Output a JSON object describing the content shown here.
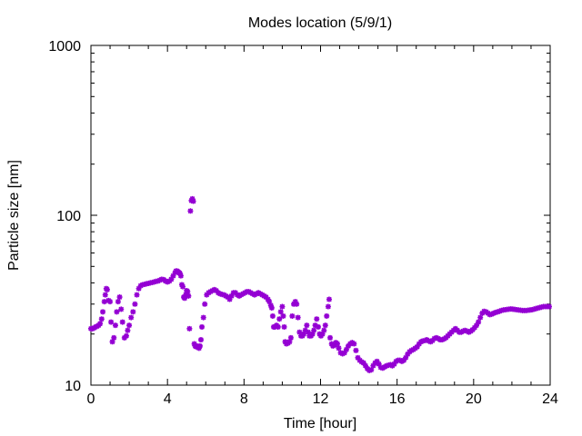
{
  "chart_data": {
    "type": "scatter",
    "title": "Modes location (5/9/1)",
    "xlabel": "Time [hour]",
    "ylabel": "Particle size [nm]",
    "xlim": [
      0,
      24
    ],
    "ylim": [
      10,
      1000
    ],
    "yscale": "log",
    "xticks": [
      0,
      4,
      8,
      12,
      16,
      20,
      24
    ],
    "xtick_labels": [
      "0",
      "4",
      "8",
      "12",
      "16",
      "20",
      "24"
    ],
    "yticks": [
      10,
      100,
      1000
    ],
    "ytick_labels": [
      "10",
      "100",
      "1000"
    ],
    "grid": false,
    "marker_color": "#9400d3",
    "series": [
      {
        "marker": "star",
        "points": [
          [
            0.0,
            21.5
          ],
          [
            0.08,
            21.5
          ],
          [
            0.16,
            21.7
          ],
          [
            0.24,
            22
          ],
          [
            0.32,
            22.2
          ],
          [
            0.4,
            22.5
          ],
          [
            0.48,
            23
          ],
          [
            0.56,
            24.5
          ],
          [
            0.62,
            27
          ],
          [
            0.7,
            31
          ],
          [
            0.75,
            34
          ],
          [
            0.8,
            37
          ],
          [
            0.85,
            36.5
          ],
          [
            0.92,
            31.5
          ],
          [
            1.0,
            31
          ],
          [
            1.05,
            23.5
          ],
          [
            1.12,
            18
          ],
          [
            1.2,
            19
          ],
          [
            1.28,
            22.5
          ],
          [
            1.35,
            27
          ],
          [
            1.42,
            31
          ],
          [
            1.5,
            33
          ],
          [
            1.58,
            28
          ],
          [
            1.65,
            23.5
          ],
          [
            1.75,
            19
          ],
          [
            1.85,
            19.5
          ],
          [
            1.92,
            21
          ],
          [
            2.0,
            22.5
          ],
          [
            2.1,
            25
          ],
          [
            2.2,
            27
          ],
          [
            2.3,
            30
          ],
          [
            2.4,
            34
          ],
          [
            2.5,
            37
          ],
          [
            2.6,
            38.5
          ],
          [
            2.7,
            39
          ],
          [
            2.8,
            39.2
          ],
          [
            2.9,
            39.5
          ],
          [
            3.0,
            39.7
          ],
          [
            3.1,
            40
          ],
          [
            3.2,
            40.2
          ],
          [
            3.3,
            40.5
          ],
          [
            3.4,
            40.8
          ],
          [
            3.5,
            41
          ],
          [
            3.6,
            41.5
          ],
          [
            3.7,
            42
          ],
          [
            3.8,
            41.8
          ],
          [
            3.9,
            41
          ],
          [
            4.0,
            40.5
          ],
          [
            4.1,
            41
          ],
          [
            4.2,
            42
          ],
          [
            4.3,
            44
          ],
          [
            4.4,
            46
          ],
          [
            4.45,
            47
          ],
          [
            4.5,
            47
          ],
          [
            4.55,
            46.5
          ],
          [
            4.6,
            46
          ],
          [
            4.65,
            45.5
          ],
          [
            4.7,
            44
          ],
          [
            4.75,
            39
          ],
          [
            4.8,
            38
          ],
          [
            4.85,
            33
          ],
          [
            4.9,
            32.5
          ],
          [
            4.95,
            34
          ],
          [
            5.0,
            36
          ],
          [
            5.05,
            35.5
          ],
          [
            5.1,
            33.5
          ],
          [
            5.15,
            21.5
          ],
          [
            5.2,
            106
          ],
          [
            5.25,
            122
          ],
          [
            5.3,
            125
          ],
          [
            5.35,
            121
          ],
          [
            5.4,
            17.5
          ],
          [
            5.45,
            17
          ],
          [
            5.5,
            16.8
          ],
          [
            5.55,
            17
          ],
          [
            5.6,
            16.8
          ],
          [
            5.65,
            16.5
          ],
          [
            5.7,
            17
          ],
          [
            5.75,
            18.5
          ],
          [
            5.8,
            22
          ],
          [
            5.88,
            25
          ],
          [
            5.95,
            30
          ],
          [
            6.05,
            34
          ],
          [
            6.15,
            35
          ],
          [
            6.25,
            35.5
          ],
          [
            6.35,
            36
          ],
          [
            6.45,
            36.5
          ],
          [
            6.55,
            36
          ],
          [
            6.65,
            35
          ],
          [
            6.75,
            34.5
          ],
          [
            6.85,
            34.2
          ],
          [
            6.95,
            34
          ],
          [
            7.05,
            33.5
          ],
          [
            7.15,
            33
          ],
          [
            7.25,
            32
          ],
          [
            7.35,
            33.5
          ],
          [
            7.45,
            35
          ],
          [
            7.55,
            35
          ],
          [
            7.65,
            34
          ],
          [
            7.75,
            33.5
          ],
          [
            7.85,
            34
          ],
          [
            7.95,
            34.5
          ],
          [
            8.05,
            35
          ],
          [
            8.15,
            35.5
          ],
          [
            8.25,
            35.5
          ],
          [
            8.35,
            35
          ],
          [
            8.45,
            34.5
          ],
          [
            8.55,
            34
          ],
          [
            8.65,
            34.5
          ],
          [
            8.75,
            35
          ],
          [
            8.85,
            34.5
          ],
          [
            8.95,
            34
          ],
          [
            9.05,
            33.5
          ],
          [
            9.15,
            33
          ],
          [
            9.25,
            32
          ],
          [
            9.32,
            31
          ],
          [
            9.4,
            29.5
          ],
          [
            9.45,
            28.5
          ],
          [
            9.5,
            25.5
          ],
          [
            9.55,
            22
          ],
          [
            9.62,
            22
          ],
          [
            9.7,
            22.5
          ],
          [
            9.78,
            22
          ],
          [
            9.85,
            24.5
          ],
          [
            9.92,
            27
          ],
          [
            10.0,
            29
          ],
          [
            10.05,
            25.5
          ],
          [
            10.1,
            22
          ],
          [
            10.15,
            18
          ],
          [
            10.22,
            17.5
          ],
          [
            10.3,
            17.7
          ],
          [
            10.38,
            18
          ],
          [
            10.45,
            19
          ],
          [
            10.52,
            25.5
          ],
          [
            10.6,
            30
          ],
          [
            10.68,
            31
          ],
          [
            10.75,
            30
          ],
          [
            10.82,
            25
          ],
          [
            10.9,
            20.5
          ],
          [
            10.98,
            19.5
          ],
          [
            11.05,
            19.5
          ],
          [
            11.12,
            20
          ],
          [
            11.2,
            21
          ],
          [
            11.28,
            22.5
          ],
          [
            11.35,
            20.5
          ],
          [
            11.42,
            19.5
          ],
          [
            11.5,
            19.5
          ],
          [
            11.58,
            20
          ],
          [
            11.65,
            21
          ],
          [
            11.72,
            22.5
          ],
          [
            11.8,
            24.5
          ],
          [
            11.88,
            22
          ],
          [
            11.95,
            20
          ],
          [
            12.02,
            19.5
          ],
          [
            12.1,
            20
          ],
          [
            12.18,
            21
          ],
          [
            12.25,
            22.5
          ],
          [
            12.32,
            25.5
          ],
          [
            12.4,
            29
          ],
          [
            12.45,
            32
          ],
          [
            12.5,
            19
          ],
          [
            12.58,
            17.5
          ],
          [
            12.65,
            17
          ],
          [
            12.72,
            17.2
          ],
          [
            12.8,
            17.8
          ],
          [
            12.88,
            17.5
          ],
          [
            12.95,
            16.5
          ],
          [
            13.05,
            15.5
          ],
          [
            13.15,
            15.3
          ],
          [
            13.25,
            15.5
          ],
          [
            13.35,
            16.2
          ],
          [
            13.45,
            17
          ],
          [
            13.55,
            17.5
          ],
          [
            13.65,
            17.8
          ],
          [
            13.75,
            17.5
          ],
          [
            13.85,
            16
          ],
          [
            13.95,
            14.5
          ],
          [
            14.05,
            14
          ],
          [
            14.15,
            13.7
          ],
          [
            14.25,
            13.5
          ],
          [
            14.35,
            13
          ],
          [
            14.45,
            12.5
          ],
          [
            14.55,
            12.2
          ],
          [
            14.65,
            12.3
          ],
          [
            14.75,
            13
          ],
          [
            14.85,
            13.5
          ],
          [
            14.95,
            13.8
          ],
          [
            15.05,
            13.3
          ],
          [
            15.15,
            12.7
          ],
          [
            15.25,
            12.6
          ],
          [
            15.35,
            12.8
          ],
          [
            15.45,
            13
          ],
          [
            15.55,
            13.1
          ],
          [
            15.65,
            13.2
          ],
          [
            15.75,
            13
          ],
          [
            15.85,
            13.3
          ],
          [
            15.95,
            13.8
          ],
          [
            16.05,
            14
          ],
          [
            16.15,
            14
          ],
          [
            16.25,
            13.8
          ],
          [
            16.35,
            14
          ],
          [
            16.45,
            14.5
          ],
          [
            16.55,
            15.2
          ],
          [
            16.65,
            15.7
          ],
          [
            16.75,
            16
          ],
          [
            16.85,
            16.2
          ],
          [
            16.95,
            16.5
          ],
          [
            17.05,
            16.8
          ],
          [
            17.15,
            17.5
          ],
          [
            17.25,
            18
          ],
          [
            17.35,
            18.2
          ],
          [
            17.45,
            18.3
          ],
          [
            17.55,
            18.5
          ],
          [
            17.65,
            18.2
          ],
          [
            17.75,
            18
          ],
          [
            17.85,
            18.3
          ],
          [
            17.95,
            18.8
          ],
          [
            18.05,
            19
          ],
          [
            18.15,
            18.8
          ],
          [
            18.25,
            18.5
          ],
          [
            18.35,
            18.5
          ],
          [
            18.45,
            18.7
          ],
          [
            18.55,
            19
          ],
          [
            18.65,
            19.5
          ],
          [
            18.75,
            20
          ],
          [
            18.85,
            20.5
          ],
          [
            18.95,
            21
          ],
          [
            19.05,
            21.5
          ],
          [
            19.15,
            21
          ],
          [
            19.25,
            20.5
          ],
          [
            19.35,
            20.5
          ],
          [
            19.45,
            20.8
          ],
          [
            19.55,
            21
          ],
          [
            19.65,
            20.8
          ],
          [
            19.75,
            20.5
          ],
          [
            19.85,
            20.8
          ],
          [
            19.95,
            21.2
          ],
          [
            20.05,
            21.8
          ],
          [
            20.15,
            22.5
          ],
          [
            20.25,
            23.5
          ],
          [
            20.35,
            25
          ],
          [
            20.45,
            26.5
          ],
          [
            20.55,
            27.2
          ],
          [
            20.65,
            27
          ],
          [
            20.75,
            26.5
          ],
          [
            20.85,
            26
          ],
          [
            20.95,
            26.2
          ],
          [
            21.05,
            26.5
          ],
          [
            21.15,
            26.8
          ],
          [
            21.25,
            27
          ],
          [
            21.35,
            27.2
          ],
          [
            21.45,
            27.5
          ],
          [
            21.55,
            27.7
          ],
          [
            21.65,
            27.8
          ],
          [
            21.75,
            27.9
          ],
          [
            21.85,
            28
          ],
          [
            21.95,
            28.1
          ],
          [
            22.05,
            28
          ],
          [
            22.15,
            27.9
          ],
          [
            22.25,
            27.8
          ],
          [
            22.35,
            27.7
          ],
          [
            22.45,
            27.6
          ],
          [
            22.55,
            27.5
          ],
          [
            22.65,
            27.5
          ],
          [
            22.75,
            27.5
          ],
          [
            22.85,
            27.6
          ],
          [
            22.95,
            27.7
          ],
          [
            23.05,
            27.8
          ],
          [
            23.15,
            28
          ],
          [
            23.25,
            28.2
          ],
          [
            23.35,
            28.4
          ],
          [
            23.45,
            28.6
          ],
          [
            23.55,
            28.8
          ],
          [
            23.65,
            29
          ],
          [
            23.75,
            29
          ],
          [
            23.85,
            29
          ],
          [
            23.95,
            29
          ]
        ]
      }
    ]
  }
}
